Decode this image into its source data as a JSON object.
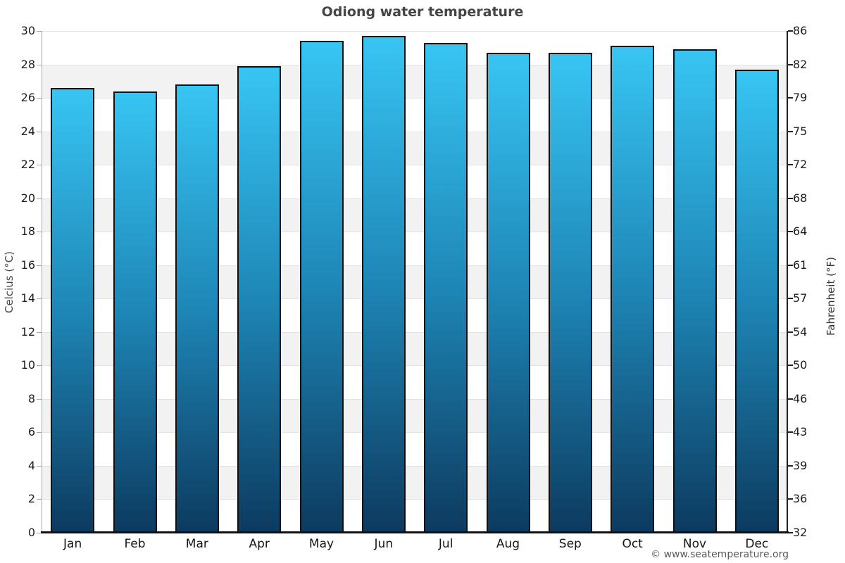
{
  "footer": "© www.seatemperature.org",
  "chart_data": {
    "type": "bar",
    "title": "Odiong water temperature",
    "categories": [
      "Jan",
      "Feb",
      "Mar",
      "Apr",
      "May",
      "Jun",
      "Jul",
      "Aug",
      "Sep",
      "Oct",
      "Nov",
      "Dec"
    ],
    "values": [
      26.6,
      26.4,
      26.8,
      27.9,
      29.4,
      29.7,
      29.3,
      28.7,
      28.7,
      29.1,
      28.9,
      27.7
    ],
    "unit": "°C",
    "ylabel_left": "Celcius (°C)",
    "ylabel_right": "Fahrenheit (°F)",
    "ylim": [
      0,
      30
    ],
    "y_ticks_celsius": [
      0,
      2,
      4,
      6,
      8,
      10,
      12,
      14,
      16,
      18,
      20,
      22,
      24,
      26,
      28,
      30
    ],
    "y_ticks_fahrenheit": [
      32,
      36,
      39,
      43,
      46,
      50,
      54,
      57,
      61,
      64,
      68,
      72,
      75,
      79,
      82,
      86
    ],
    "grid": "horizontal-lines-with-alternating-bands",
    "legend": "none",
    "colors": {
      "bar_top": "#38c5f3",
      "bar_mid": "#1e86b6",
      "bar_bottom": "#0d3a5f",
      "bar_border": "#111111",
      "band_gray": "#f2f2f2",
      "band_white": "#ffffff",
      "grid_line": "#e2e2e2",
      "axis_left": "#a8a8a8",
      "axis_right": "#222222",
      "axis_bottom": "#111111",
      "title_color": "#454545",
      "footer_color": "#5a5a5a"
    }
  }
}
